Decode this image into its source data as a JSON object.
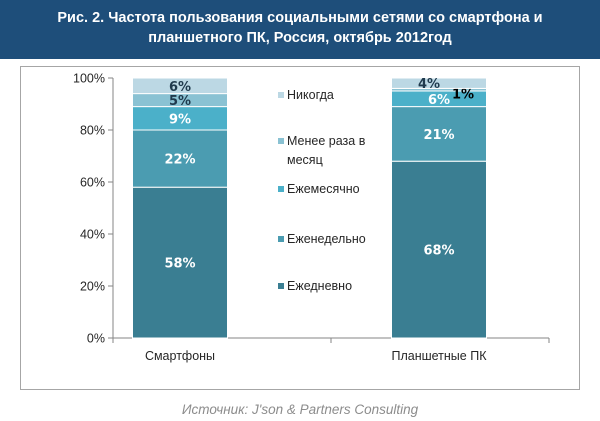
{
  "title_line1": "Рис. 2. Частота пользования социальными сетями со смартфона и",
  "title_line2": "планшетного ПК, Россия, октябрь 2012год",
  "source": "Источник: J'son & Partners Consulting",
  "colors": {
    "header_bg": "#1e4e7a",
    "series": [
      "#3a7e92",
      "#4b9cb1",
      "#4bb0c9",
      "#8ac2d3",
      "#bcd8e4"
    ]
  },
  "chart_data": {
    "type": "bar",
    "stacked": true,
    "categories": [
      "Смартфоны",
      "Планшетные ПК"
    ],
    "y_ticks": [
      "0%",
      "20%",
      "40%",
      "60%",
      "80%",
      "100%"
    ],
    "ylim": [
      0,
      100
    ],
    "grid": false,
    "legend_position": "right",
    "series": [
      {
        "name": "Ежедневно",
        "values": [
          58,
          68
        ],
        "labels": [
          "58%",
          "68%"
        ]
      },
      {
        "name": "Еженедельно",
        "values": [
          22,
          21
        ],
        "labels": [
          "22%",
          "21%"
        ]
      },
      {
        "name": "Ежемесячно",
        "values": [
          9,
          6
        ],
        "labels": [
          "9%",
          "6%"
        ]
      },
      {
        "name": "Менее раза в месяц",
        "legend_lines": [
          "Менее раза в",
          "месяц"
        ],
        "values": [
          5,
          1
        ],
        "labels": [
          "5%",
          "1%"
        ]
      },
      {
        "name": "Никогда",
        "values": [
          6,
          4
        ],
        "labels": [
          "6%",
          "4%"
        ]
      }
    ]
  }
}
